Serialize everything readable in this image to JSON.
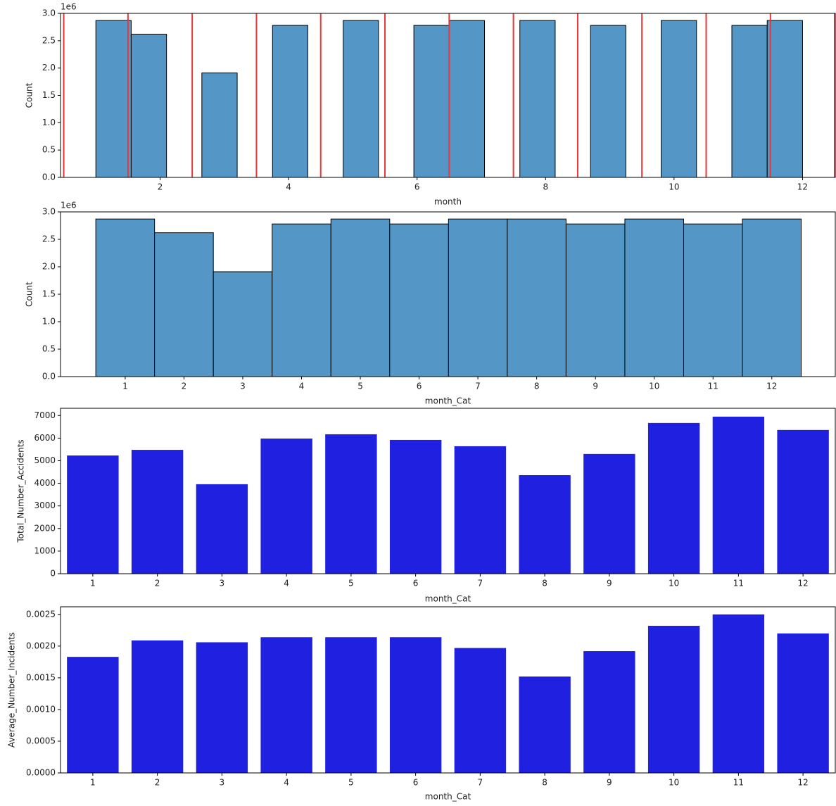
{
  "chart_data": [
    {
      "type": "histogram",
      "x_label": "month",
      "y_label": "Count",
      "y_offset_label": "1e6",
      "bins": [
        1.0,
        1.55,
        2.1,
        2.65,
        3.2,
        3.75,
        4.3,
        4.85,
        5.4,
        5.95,
        6.5,
        7.05,
        7.6,
        8.15,
        8.7,
        9.25,
        9.8,
        10.35,
        10.9,
        11.45,
        12.0
      ],
      "values": [
        2870000,
        2620000,
        0,
        1910000,
        0,
        2780000,
        0,
        2870000,
        0,
        2780000,
        2870000,
        0,
        2870000,
        0,
        2780000,
        0,
        2870000,
        0,
        2780000,
        2870000
      ],
      "color": "#5497c7",
      "edgecolor": "#000000",
      "vlines": [
        0.5,
        1.5,
        2.5,
        3.5,
        4.5,
        5.5,
        6.5,
        7.5,
        8.5,
        9.5,
        10.5,
        11.5,
        12.5
      ],
      "vline_color": "#e8383b",
      "xlim": [
        0.45,
        12.51
      ],
      "xticks": [
        2,
        4,
        6,
        8,
        10,
        12
      ],
      "ylim": [
        0,
        3000000
      ],
      "yticks": [
        {
          "value": 0,
          "label": "0.0"
        },
        {
          "value": 500000,
          "label": "0.5"
        },
        {
          "value": 1000000,
          "label": "1.0"
        },
        {
          "value": 1500000,
          "label": "1.5"
        },
        {
          "value": 2000000,
          "label": "2.0"
        },
        {
          "value": 2500000,
          "label": "2.5"
        },
        {
          "value": 3000000,
          "label": "3.0"
        }
      ]
    },
    {
      "type": "histogram",
      "x_label": "month_Cat",
      "y_label": "Count",
      "y_offset_label": "1e6",
      "bins": [
        0.5,
        1.5,
        2.5,
        3.5,
        4.5,
        5.5,
        6.5,
        7.5,
        8.5,
        9.5,
        10.5,
        11.5,
        12.5
      ],
      "values": [
        2870000,
        2620000,
        1910000,
        2780000,
        2870000,
        2780000,
        2870000,
        2870000,
        2780000,
        2870000,
        2780000,
        2870000
      ],
      "color": "#5497c7",
      "edgecolor": "#000000",
      "xlim": [
        -0.1,
        13.08
      ],
      "xticks": [
        1,
        2,
        3,
        4,
        5,
        6,
        7,
        8,
        9,
        10,
        11,
        12
      ],
      "ylim": [
        0,
        3000000
      ],
      "yticks": [
        {
          "value": 0,
          "label": "0.0"
        },
        {
          "value": 500000,
          "label": "0.5"
        },
        {
          "value": 1000000,
          "label": "1.0"
        },
        {
          "value": 1500000,
          "label": "1.5"
        },
        {
          "value": 2000000,
          "label": "2.0"
        },
        {
          "value": 2500000,
          "label": "2.5"
        },
        {
          "value": 3000000,
          "label": "3.0"
        }
      ]
    },
    {
      "type": "bar",
      "x_label": "month_Cat",
      "y_label": "Total_Number_Accidents",
      "categories": [
        "1",
        "2",
        "3",
        "4",
        "5",
        "6",
        "7",
        "8",
        "9",
        "10",
        "11",
        "12"
      ],
      "values": [
        5230,
        5480,
        3960,
        5980,
        6170,
        5920,
        5640,
        4360,
        5300,
        6670,
        6950,
        6360
      ],
      "color": "#2020e0",
      "ylim": [
        0,
        7320
      ],
      "yticks": [
        0,
        1000,
        2000,
        3000,
        4000,
        5000,
        6000,
        7000
      ]
    },
    {
      "type": "bar",
      "x_label": "month_Cat",
      "y_label": "Average_Number_Incidents",
      "categories": [
        "1",
        "2",
        "3",
        "4",
        "5",
        "6",
        "7",
        "8",
        "9",
        "10",
        "11",
        "12"
      ],
      "values": [
        0.00183,
        0.00209,
        0.00206,
        0.00214,
        0.00214,
        0.00214,
        0.00197,
        0.00152,
        0.00192,
        0.00232,
        0.0025,
        0.0022
      ],
      "color": "#2020e0",
      "ylim": [
        0,
        0.00262
      ],
      "yticks": [
        {
          "value": 0,
          "label": "0.0000"
        },
        {
          "value": 0.0005,
          "label": "0.0005"
        },
        {
          "value": 0.001,
          "label": "0.0010"
        },
        {
          "value": 0.0015,
          "label": "0.0015"
        },
        {
          "value": 0.002,
          "label": "0.0020"
        },
        {
          "value": 0.0025,
          "label": "0.0025"
        }
      ]
    }
  ]
}
